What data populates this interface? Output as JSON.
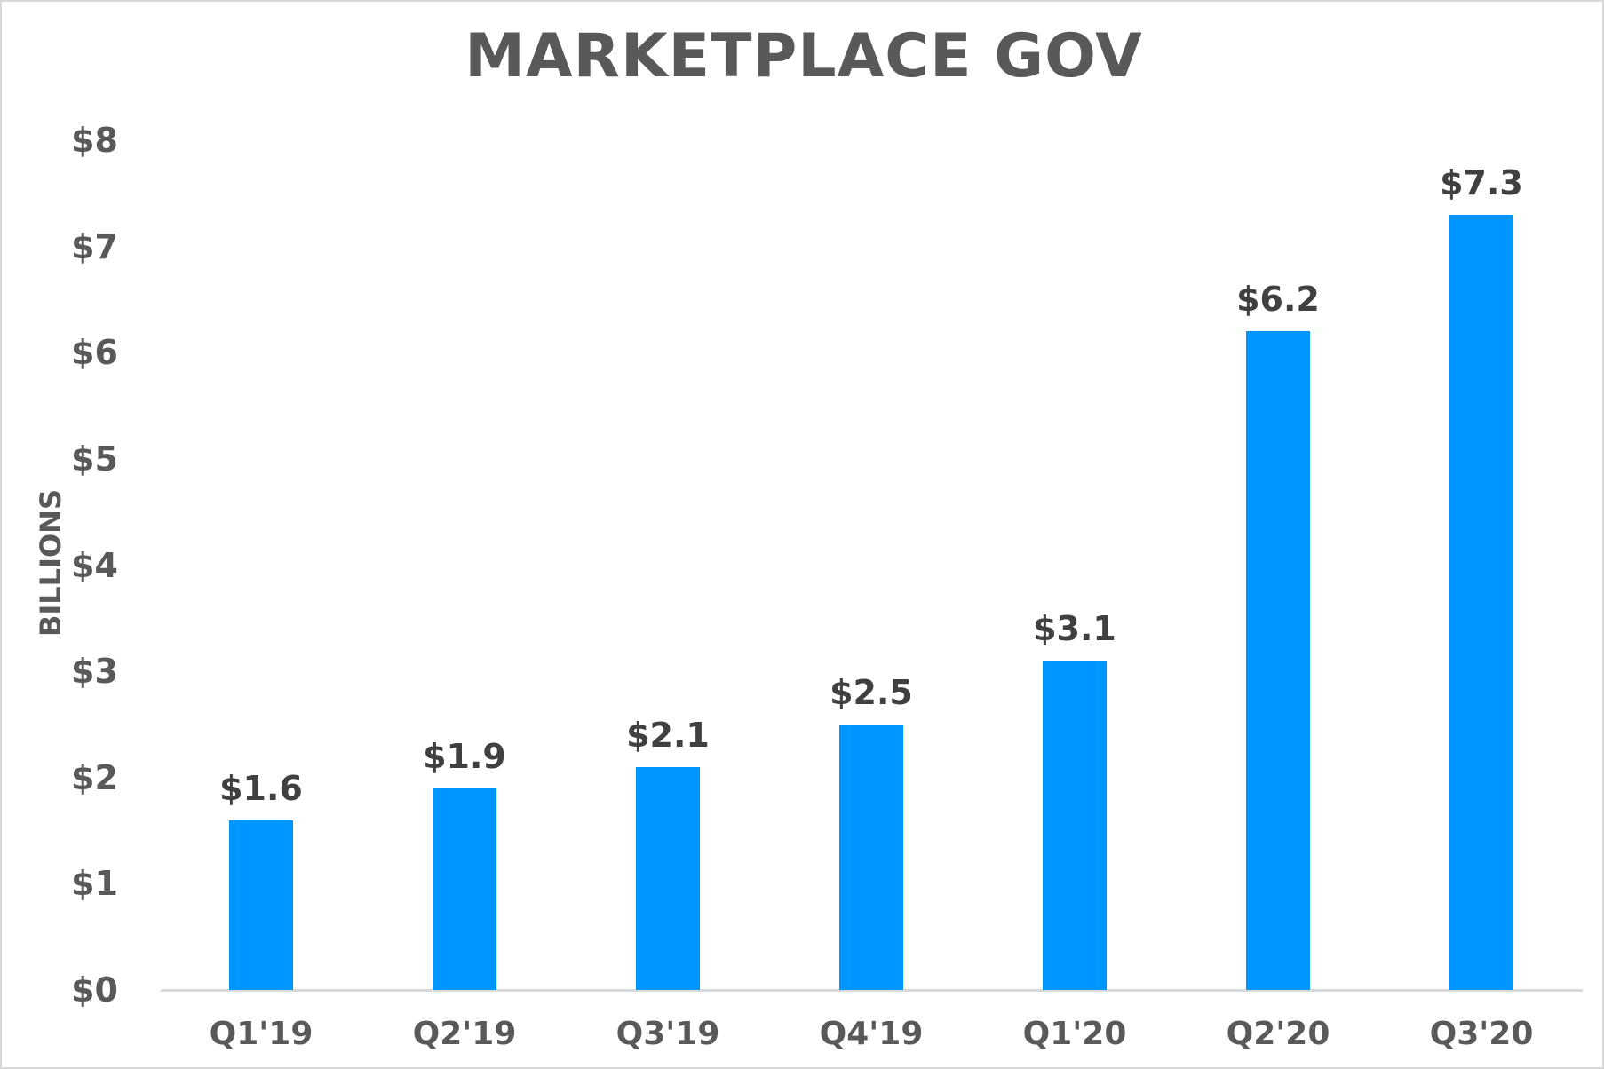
{
  "chart_data": {
    "type": "bar",
    "title": "MARKETPLACE GOV",
    "xlabel": "",
    "ylabel": "BILLIONS",
    "ylim": [
      0,
      8
    ],
    "yticks": [
      "$0",
      "$1",
      "$2",
      "$3",
      "$4",
      "$5",
      "$6",
      "$7",
      "$8"
    ],
    "categories": [
      "Q1'19",
      "Q2'19",
      "Q3'19",
      "Q4'19",
      "Q1'20",
      "Q2'20",
      "Q3'20"
    ],
    "values": [
      1.6,
      1.9,
      2.1,
      2.5,
      3.1,
      6.2,
      7.3
    ],
    "value_labels": [
      "$1.6",
      "$1.9",
      "$2.1",
      "$2.5",
      "$3.1",
      "$6.2",
      "$7.3"
    ],
    "grid": false,
    "legend": null,
    "colors": {
      "bar": "#0096FF",
      "text": "#595959",
      "value_text": "#404040",
      "axis": "#D9D9D9"
    }
  }
}
